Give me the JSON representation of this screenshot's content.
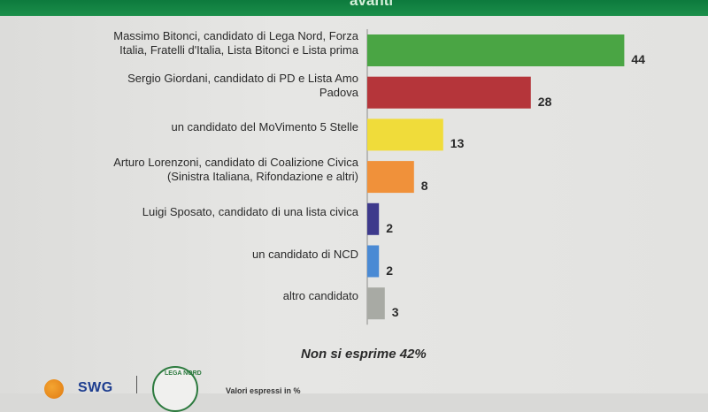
{
  "header": {
    "title_fragment": "avanti"
  },
  "chart_data": {
    "type": "bar",
    "orientation": "horizontal",
    "categories": [
      "Massimo Bitonci, candidato di Lega Nord, Forza\nItalia, Fratelli d'Italia, Lista Bitonci e Lista prima",
      "Sergio Giordani, candidato di PD e Lista Amo\nPadova",
      "un candidato del MoVimento 5 Stelle",
      "Arturo Lorenzoni, candidato di Coalizione Civica\n(Sinistra Italiana, Rifondazione e altri)",
      "Luigi Sposato, candidato di una lista civica",
      "un candidato di NCD",
      "altro candidato"
    ],
    "values": [
      44,
      28,
      13,
      8,
      2,
      2,
      3
    ],
    "value_labels": [
      "44",
      "28",
      "13",
      "8",
      "2",
      "2",
      "3"
    ],
    "colors": [
      "#4aa544",
      "#b5353a",
      "#f0dc3a",
      "#f0913a",
      "#3e3a8c",
      "#4a8ad4",
      "#a8aaa4"
    ],
    "grid": false,
    "legend": "none"
  },
  "footnote": "Non si esprime 42%",
  "logos": {
    "swg": "SWG",
    "lega": "LEGA NORD"
  },
  "source_text": "Valori espressi in %"
}
